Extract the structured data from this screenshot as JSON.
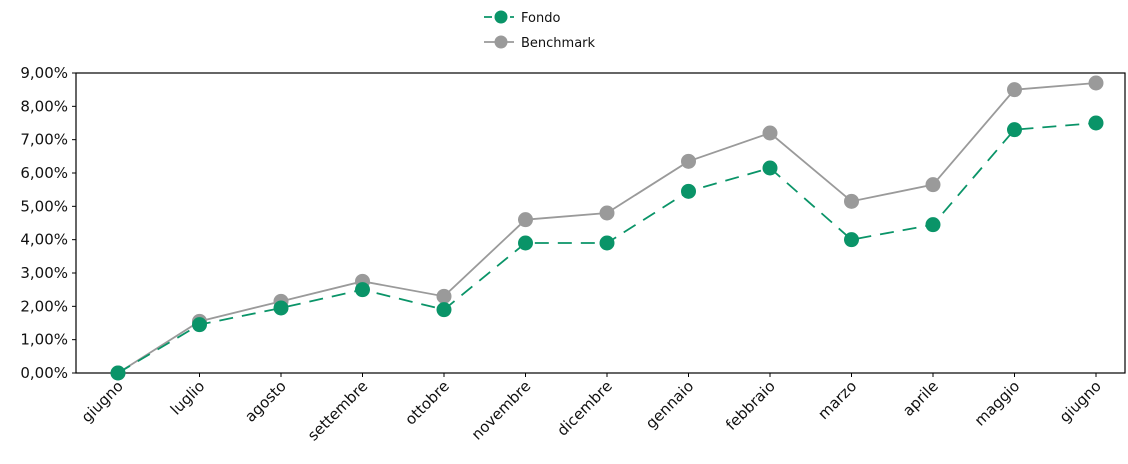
{
  "chart_data": {
    "type": "line",
    "title": "",
    "xlabel": "",
    "ylabel": "",
    "categories": [
      "giugno",
      "luglio",
      "agosto",
      "settembre",
      "ottobre",
      "novembre",
      "dicembre",
      "gennaio",
      "febbraio",
      "marzo",
      "aprile",
      "maggio",
      "giugno"
    ],
    "yticks": [
      "0,00%",
      "1,00%",
      "2,00%",
      "3,00%",
      "4,00%",
      "5,00%",
      "6,00%",
      "7,00%",
      "8,00%",
      "9,00%"
    ],
    "ylim": [
      0,
      9
    ],
    "grid": false,
    "legend_position": "top-center",
    "series": [
      {
        "name": "Fondo",
        "color": "#0a9468",
        "line_style": "dashed",
        "values": [
          0.0,
          1.45,
          1.95,
          2.5,
          1.9,
          3.9,
          3.9,
          5.45,
          6.15,
          4.0,
          4.45,
          7.3,
          7.5
        ]
      },
      {
        "name": "Benchmark",
        "color": "#9a9a9a",
        "line_style": "solid",
        "values": [
          0.0,
          1.55,
          2.15,
          2.75,
          2.3,
          4.6,
          4.8,
          6.35,
          7.2,
          5.15,
          5.65,
          8.5,
          8.7
        ]
      }
    ]
  }
}
